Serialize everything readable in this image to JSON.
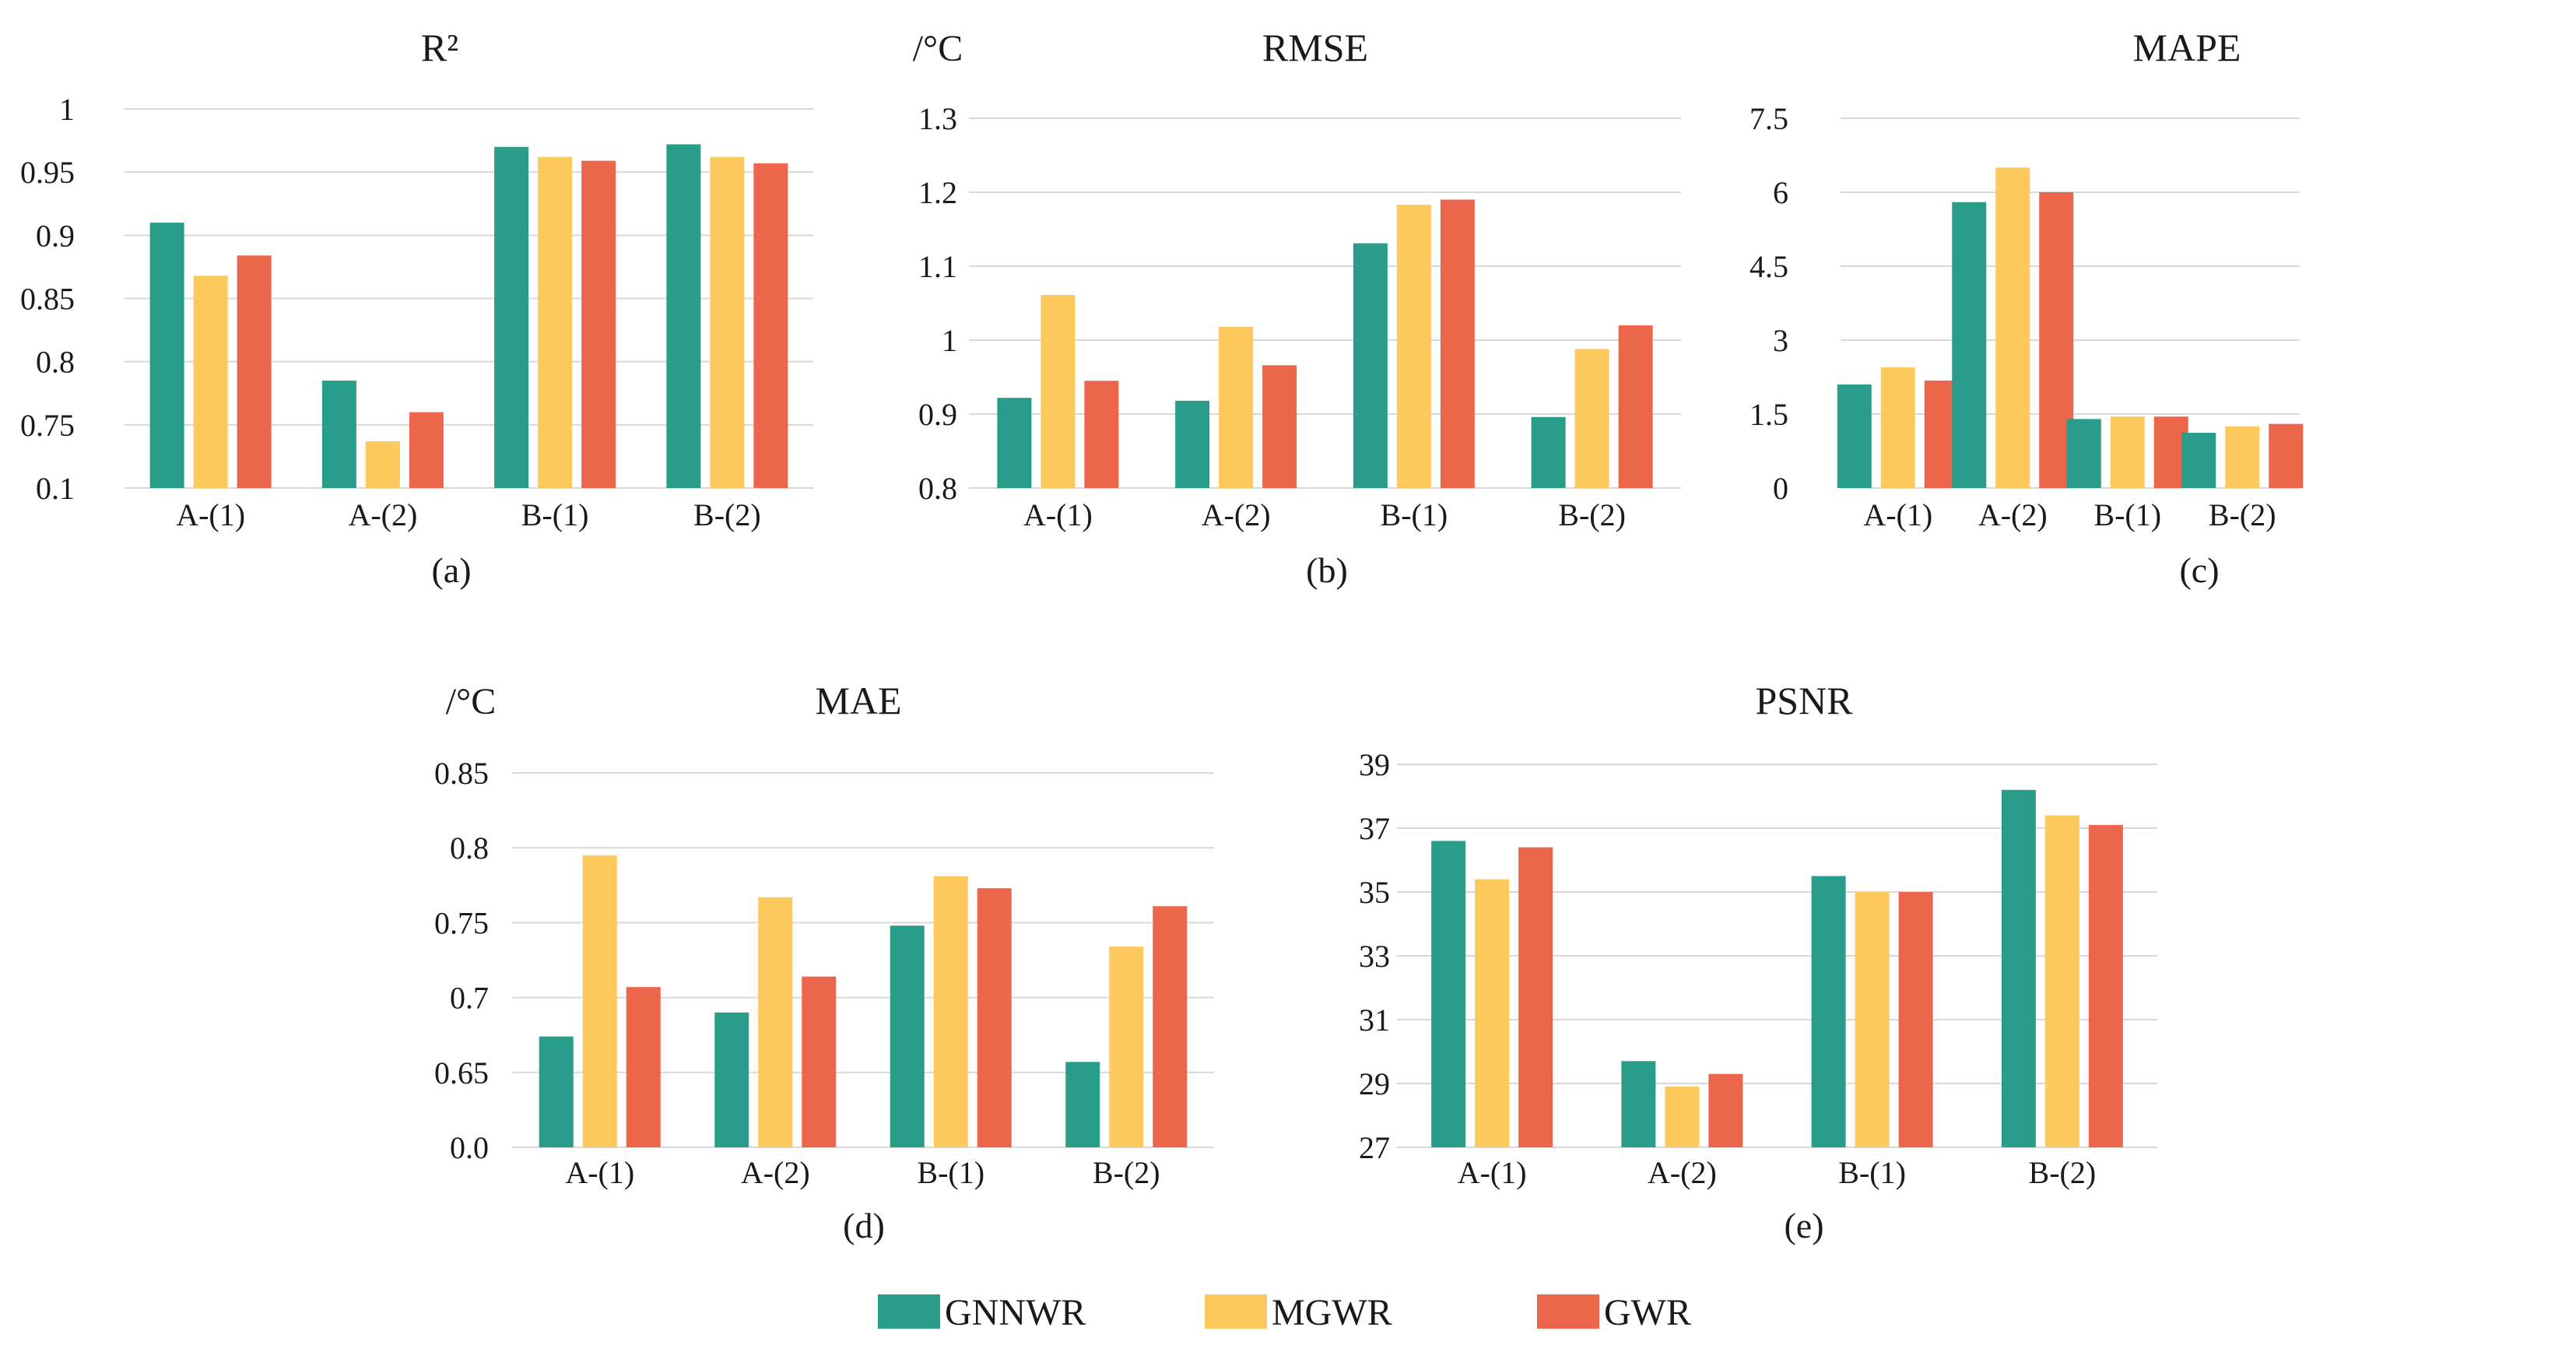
{
  "chart_data": [
    {
      "type": "bar",
      "title": "R²",
      "unit_label": "",
      "sub_label": "(a)",
      "categories": [
        "A-(1)",
        "A-(2)",
        "B-(1)",
        "B-(2)"
      ],
      "ytick_labels": [
        "0.1",
        "0.75",
        "0.8",
        "0.85",
        "0.9",
        "0.95",
        "1"
      ],
      "ylim": [
        0.7,
        1.0
      ],
      "axis_break": "lowest tick labeled 0.1 (broken axis)",
      "series": [
        {
          "name": "GNNWR",
          "values": [
            0.91,
            0.785,
            0.97,
            0.972
          ]
        },
        {
          "name": "MGWR",
          "values": [
            0.868,
            0.737,
            0.962,
            0.962
          ]
        },
        {
          "name": "GWR",
          "values": [
            0.884,
            0.76,
            0.959,
            0.957
          ]
        }
      ]
    },
    {
      "type": "bar",
      "title": "RMSE",
      "unit_label": "/°C",
      "sub_label": "(b)",
      "categories": [
        "A-(1)",
        "A-(2)",
        "B-(1)",
        "B-(2)"
      ],
      "ytick_labels": [
        "0.8",
        "0.9",
        "1",
        "1.1",
        "1.2",
        "1.3"
      ],
      "ylim": [
        0.8,
        1.3
      ],
      "series": [
        {
          "name": "GNNWR",
          "values": [
            0.922,
            0.918,
            1.131,
            0.896
          ]
        },
        {
          "name": "MGWR",
          "values": [
            1.061,
            1.018,
            1.183,
            0.988
          ]
        },
        {
          "name": "GWR",
          "values": [
            0.945,
            0.966,
            1.19,
            1.02
          ]
        }
      ]
    },
    {
      "type": "bar",
      "title": "MAPE",
      "unit_label": "",
      "sub_label": "(c)",
      "categories": [
        "A-(1)",
        "A-(2)",
        "B-(1)",
        "B-(2)"
      ],
      "ytick_labels": [
        "0",
        "1.5",
        "3",
        "4.5",
        "6",
        "7.5"
      ],
      "ylim": [
        0,
        7.5
      ],
      "series": [
        {
          "name": "GNNWR",
          "values": [
            2.1,
            5.8,
            1.4,
            1.12
          ]
        },
        {
          "name": "MGWR",
          "values": [
            2.45,
            6.5,
            1.45,
            1.25
          ]
        },
        {
          "name": "GWR",
          "values": [
            2.18,
            6.0,
            1.45,
            1.3
          ]
        }
      ]
    },
    {
      "type": "bar",
      "title": "MAE",
      "unit_label": "/°C",
      "sub_label": "(d)",
      "categories": [
        "A-(1)",
        "A-(2)",
        "B-(1)",
        "B-(2)"
      ],
      "ytick_labels": [
        "0.0",
        "0.65",
        "0.7",
        "0.75",
        "0.8",
        "0.85"
      ],
      "ylim": [
        0.6,
        0.85
      ],
      "axis_break": "lowest tick labeled 0.0 (broken axis)",
      "series": [
        {
          "name": "GNNWR",
          "values": [
            0.674,
            0.69,
            0.748,
            0.657
          ]
        },
        {
          "name": "MGWR",
          "values": [
            0.795,
            0.767,
            0.781,
            0.734
          ]
        },
        {
          "name": "GWR",
          "values": [
            0.707,
            0.714,
            0.773,
            0.761
          ]
        }
      ]
    },
    {
      "type": "bar",
      "title": "PSNR",
      "unit_label": "",
      "sub_label": "(e)",
      "categories": [
        "A-(1)",
        "A-(2)",
        "B-(1)",
        "B-(2)"
      ],
      "ytick_labels": [
        "27",
        "29",
        "31",
        "33",
        "35",
        "37",
        "39"
      ],
      "ylim": [
        27,
        39
      ],
      "series": [
        {
          "name": "GNNWR",
          "values": [
            36.6,
            29.7,
            35.5,
            38.2
          ]
        },
        {
          "name": "MGWR",
          "values": [
            35.4,
            28.9,
            35.0,
            37.4
          ]
        },
        {
          "name": "GWR",
          "values": [
            36.4,
            29.3,
            35.0,
            37.1
          ]
        }
      ]
    }
  ],
  "legend": [
    {
      "name": "GNNWR",
      "color": "#2a9d8a"
    },
    {
      "name": "MGWR",
      "color": "#fdc85c"
    },
    {
      "name": "GWR",
      "color": "#ec664c"
    }
  ],
  "colors": {
    "GNNWR": "#2a9d8a",
    "MGWR": "#fdc85c",
    "GWR": "#ec664c",
    "grid": "#d9d9d9"
  }
}
